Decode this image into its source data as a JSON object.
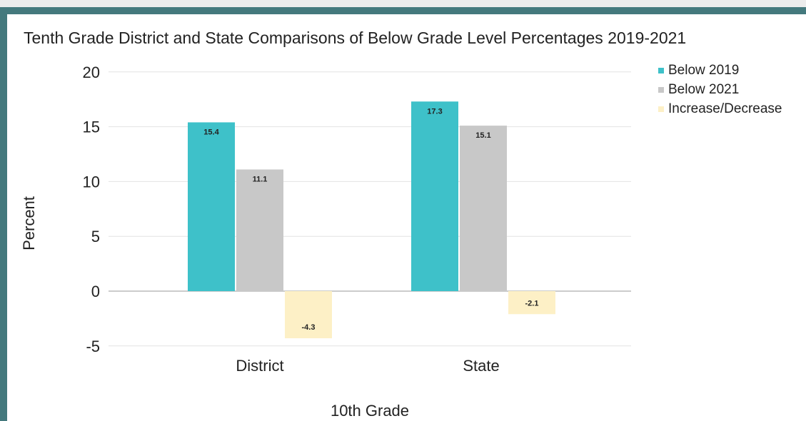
{
  "chart_data": {
    "type": "bar",
    "title": "Tenth Grade District and State Comparisons of Below Grade Level Percentages 2019-2021",
    "xlabel": "10th Grade",
    "ylabel": "Percent",
    "categories": [
      "District",
      "State"
    ],
    "series": [
      {
        "name": "Below 2019",
        "color": "#3ec1c9",
        "values": [
          15.4,
          17.3
        ],
        "labels": [
          "15.4",
          "17.3"
        ]
      },
      {
        "name": "Below 2021",
        "color": "#c8c8c8",
        "values": [
          11.1,
          15.1
        ],
        "labels": [
          "11.1",
          "15.1"
        ]
      },
      {
        "name": "Increase/Decrease",
        "color": "#fdf0c6",
        "values": [
          -4.3,
          -2.1
        ],
        "labels": [
          "-4.3",
          "-2.1"
        ]
      }
    ],
    "ylim": [
      -5,
      20
    ],
    "yticks": [
      "-5",
      "0",
      "5",
      "10",
      "15",
      "20"
    ],
    "grid": true,
    "legend_position": "top-right"
  }
}
